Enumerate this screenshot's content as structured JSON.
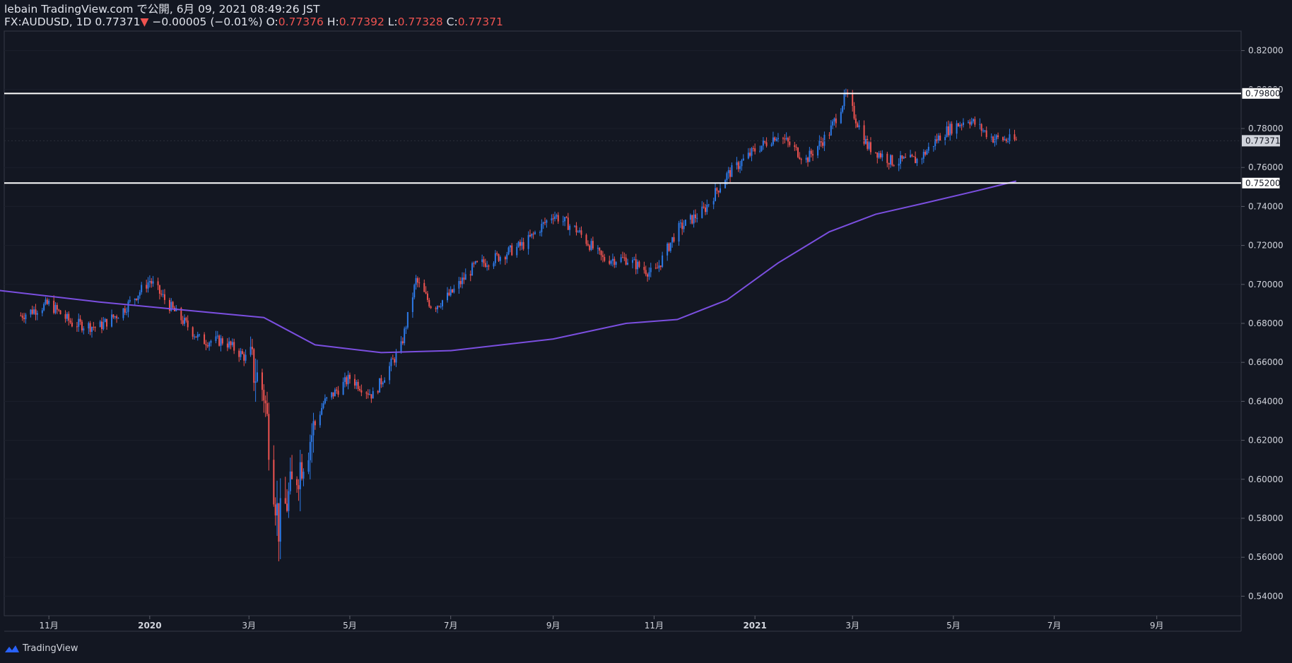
{
  "header": {
    "publish_line": "lebain TradingView.com で公開, 6月 09, 2021 08:49:26 JST",
    "symbol": "FX:AUDUSD, 1D",
    "last": "0.77371",
    "change": "−0.00005 (−0.01%)",
    "o_label": "O:",
    "o_val": "0.77376",
    "h_label": "H:",
    "h_val": "0.77392",
    "l_label": "L:",
    "l_val": "0.77328",
    "c_label": "C:",
    "c_val": "0.77371"
  },
  "footer": {
    "brand": "TradingView"
  },
  "colors": {
    "background": "#131722",
    "up": "#2d7ae8",
    "down": "#ef5350",
    "ma": "#7b4fe0",
    "level": "#ffffff",
    "grid": "#1b1f2b"
  },
  "chart_data": {
    "type": "line",
    "title": "",
    "ylim": [
      0.53,
      0.83
    ],
    "y_ticks": [
      "0.82000",
      "0.80000",
      "0.78000",
      "0.76000",
      "0.74000",
      "0.72000",
      "0.70000",
      "0.68000",
      "0.66000",
      "0.64000",
      "0.62000",
      "0.60000",
      "0.58000",
      "0.56000",
      "0.54000"
    ],
    "x_ticks": [
      "11月",
      "2020",
      "3月",
      "5月",
      "7月",
      "9月",
      "11月",
      "2021",
      "3月",
      "5月",
      "7月",
      "9月"
    ],
    "horizontal_levels": [
      {
        "value": 0.798,
        "label": "0.79800"
      },
      {
        "value": 0.752,
        "label": "0.75200"
      }
    ],
    "last_price_label": "0.77371",
    "series": [
      {
        "kind": "price",
        "x": [
          "2019-10-15",
          "2019-11-01",
          "2019-11-15",
          "2019-12-01",
          "2019-12-15",
          "2020-01-01",
          "2020-01-15",
          "2020-02-01",
          "2020-02-15",
          "2020-03-01",
          "2020-03-10",
          "2020-03-19",
          "2020-04-01",
          "2020-04-15",
          "2020-05-01",
          "2020-05-15",
          "2020-06-01",
          "2020-06-10",
          "2020-06-20",
          "2020-07-01",
          "2020-07-15",
          "2020-08-01",
          "2020-08-15",
          "2020-09-01",
          "2020-09-15",
          "2020-10-01",
          "2020-10-15",
          "2020-11-01",
          "2020-11-15",
          "2020-12-01",
          "2020-12-15",
          "2021-01-01",
          "2021-01-15",
          "2021-02-01",
          "2021-02-15",
          "2021-02-25",
          "2021-03-10",
          "2021-03-25",
          "2021-04-10",
          "2021-04-25",
          "2021-05-10",
          "2021-05-25",
          "2021-06-08"
        ],
        "values": [
          0.684,
          0.69,
          0.68,
          0.678,
          0.686,
          0.702,
          0.687,
          0.671,
          0.671,
          0.661,
          0.645,
          0.576,
          0.608,
          0.639,
          0.652,
          0.643,
          0.668,
          0.702,
          0.688,
          0.695,
          0.709,
          0.715,
          0.721,
          0.736,
          0.728,
          0.713,
          0.713,
          0.705,
          0.728,
          0.738,
          0.756,
          0.769,
          0.777,
          0.764,
          0.778,
          0.797,
          0.771,
          0.763,
          0.764,
          0.778,
          0.785,
          0.775,
          0.7737
        ]
      },
      {
        "kind": "ma",
        "x": [
          "2019-10-01",
          "2019-12-01",
          "2020-02-01",
          "2020-03-10",
          "2020-04-10",
          "2020-05-20",
          "2020-07-01",
          "2020-09-01",
          "2020-10-15",
          "2020-11-15",
          "2020-12-15",
          "2021-01-15",
          "2021-02-15",
          "2021-03-15",
          "2021-04-15",
          "2021-05-15",
          "2021-06-08"
        ],
        "values": [
          0.697,
          0.691,
          0.686,
          0.683,
          0.669,
          0.665,
          0.666,
          0.672,
          0.68,
          0.682,
          0.692,
          0.711,
          0.727,
          0.736,
          0.742,
          0.748,
          0.753
        ]
      }
    ]
  }
}
